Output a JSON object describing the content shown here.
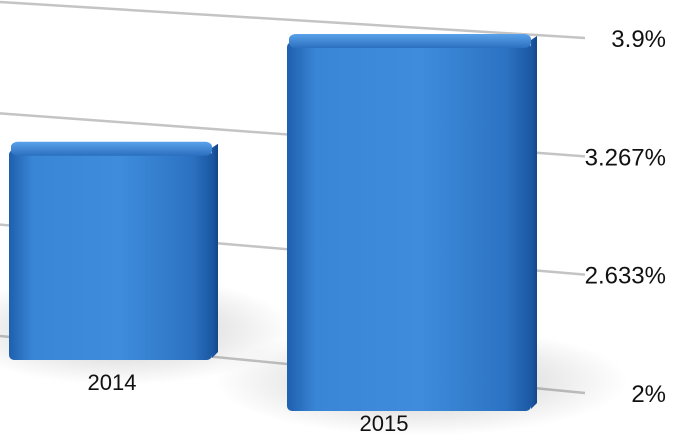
{
  "chart_data": {
    "type": "bar",
    "categories": [
      "2014",
      "2015"
    ],
    "values": [
      3.1,
      3.9
    ],
    "ylim": [
      2,
      3.9
    ],
    "yticks": [
      "2%",
      "2.633%",
      "3.267%",
      "3.9%"
    ],
    "title": "",
    "xlabel": "",
    "ylabel": "",
    "grid": true,
    "bar_color": "#2f79c9"
  }
}
